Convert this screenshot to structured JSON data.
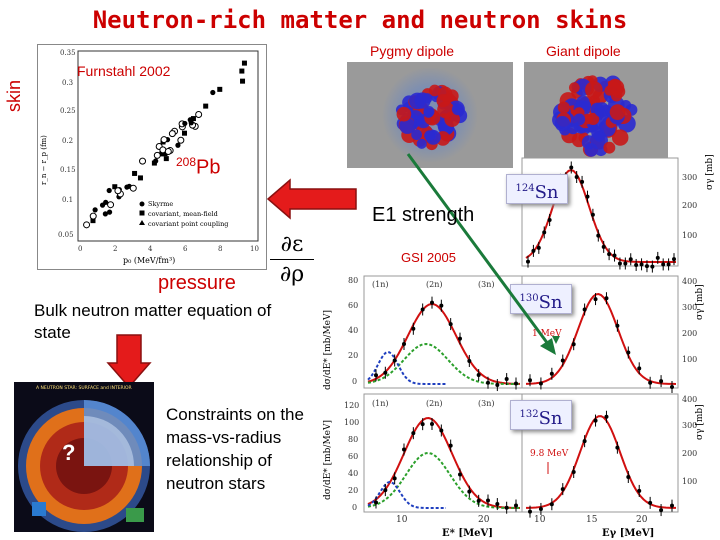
{
  "title": "Neutron-rich matter and neutron skins",
  "skin_label": "skin",
  "furnstahl": {
    "label": "Furnstahl 2002",
    "nucleus": {
      "mass": "208",
      "symbol": "Pb"
    },
    "y_axis_label": "r_n − r_p (fm)",
    "x_axis_label": "p₀ (MeV/fm³)",
    "y_ticks": [
      "0.05",
      "0.1",
      "0.15",
      "0.2",
      "0.25",
      "0.3",
      "0.35"
    ],
    "x_ticks": [
      "0",
      "2",
      "4",
      "6",
      "8",
      "10"
    ],
    "legend": [
      "Skyrme",
      "covariant, mean-field",
      "covariant point coupling"
    ]
  },
  "pygmy_title": "Pygmy dipole",
  "giant_title": "Giant dipole",
  "e1_label": "E1 strength",
  "gsi_label": "GSI 2005",
  "pressure_label": "pressure",
  "formula": {
    "numerator": "∂ε",
    "denominator": "∂ρ"
  },
  "bulk_label": "Bulk neutron matter equation of state",
  "neutron_star": {
    "question_mark": "?",
    "header": "A NEUTRON STAR: SURFACE and INTERIOR"
  },
  "constraints_label": "Constraints on the mass-vs-radius relationship of neutron stars",
  "sn_panel": {
    "badges": [
      {
        "mass": "124",
        "symbol": "Sn"
      },
      {
        "mass": "130",
        "symbol": "Sn"
      },
      {
        "mass": "132",
        "symbol": "Sn"
      }
    ],
    "annotations": [
      "1 MeV",
      "9.8 MeV"
    ],
    "peak_labels_130": [
      "(1n)",
      "(2n)",
      "(3n)"
    ],
    "peak_labels_132": [
      "(1n)",
      "(2n)",
      "(3n)"
    ],
    "y_left_label": "dσ/dE* [mb/MeV]",
    "y_right_label": "σγ [mb]",
    "x_left_label": "E* [MeV]",
    "x_right_label": "Eγ [MeV]",
    "left_y_ticks_130": [
      "0",
      "20",
      "40",
      "60",
      "80"
    ],
    "left_y_ticks_132": [
      "0",
      "20",
      "40",
      "60",
      "80",
      "100",
      "120"
    ],
    "right_y_ticks_124": [
      "100",
      "200",
      "300"
    ],
    "right_y_ticks_130": [
      "100",
      "200",
      "300",
      "400"
    ],
    "right_y_ticks_132": [
      "100",
      "200",
      "300",
      "400"
    ],
    "left_x_ticks": [
      "10",
      "20"
    ],
    "right_x_ticks": [
      "10",
      "15",
      "20"
    ]
  },
  "colors": {
    "accent_red": "#cc0000",
    "badge_text": "#221a88",
    "arrow_green": "#1a7a3a"
  }
}
